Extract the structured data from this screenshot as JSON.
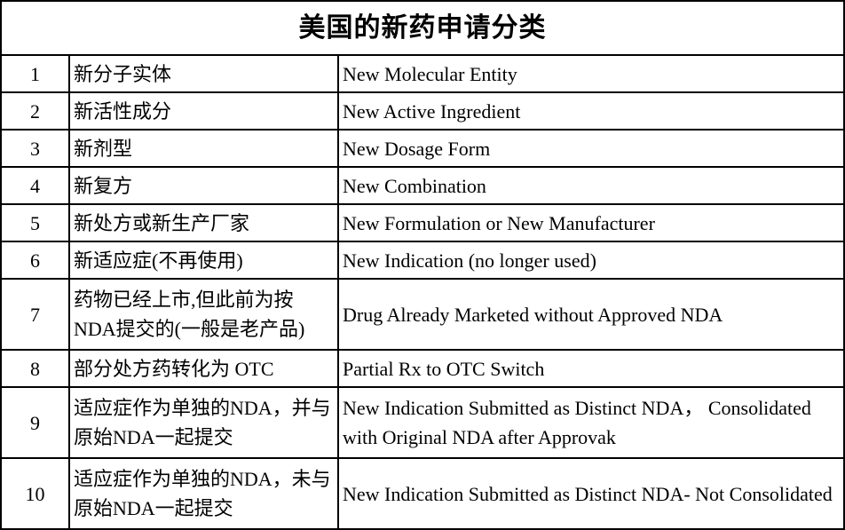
{
  "table": {
    "title": "美国的新药申请分类",
    "columns": [
      "number",
      "chinese_term",
      "english_term"
    ],
    "rows": [
      {
        "num": "1",
        "cn": "新分子实体",
        "en": "New Molecular Entity"
      },
      {
        "num": "2",
        "cn": "新活性成分",
        "en": "New Active Ingredient"
      },
      {
        "num": "3",
        "cn": "新剂型",
        "en": "New Dosage Form"
      },
      {
        "num": "4",
        "cn": "新复方",
        "en": "New Combination"
      },
      {
        "num": "5",
        "cn": "新处方或新生产厂家",
        "en": "New Formulation or New Manufacturer"
      },
      {
        "num": "6",
        "cn": "新适应症(不再使用)",
        "en": "New Indication (no longer used)"
      },
      {
        "num": "7",
        "cn": "药物已经上市,但此前为按NDA提交的(一般是老产品)",
        "en": "Drug Already Marketed without Approved NDA"
      },
      {
        "num": "8",
        "cn": "部分处方药转化为 OTC",
        "en": "Partial Rx to OTC Switch"
      },
      {
        "num": "9",
        "cn": "适应症作为单独的NDA，并与原始NDA一起提交",
        "en": "New Indication Submitted as Distinct NDA， Consolidated with Original NDA after Approvak"
      },
      {
        "num": "10",
        "cn": "适应症作为单独的NDA，未与原始NDA一起提交",
        "en": "New Indication Submitted as Distinct NDA- Not Consolidated"
      }
    ],
    "border_color": "#000000",
    "text_color": "#000000",
    "background_color": "#ffffff"
  }
}
